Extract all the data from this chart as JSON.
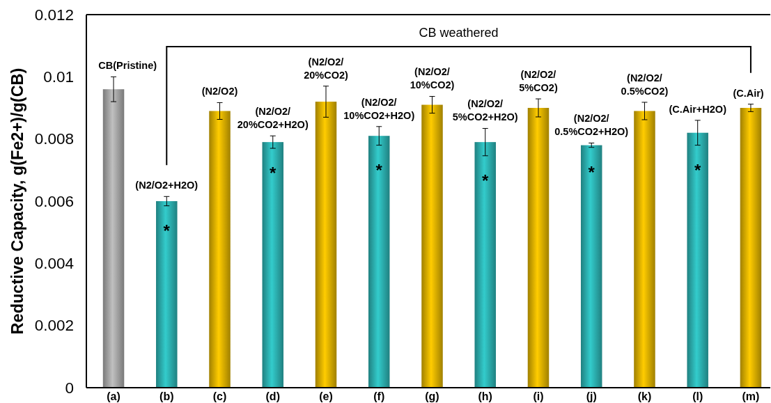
{
  "chart_data": {
    "type": "bar",
    "ylabel": "Reductive Capacity, g(Fe2+)/g(CB)",
    "categories": [
      "(a)",
      "(b)",
      "(c)",
      "(d)",
      "(e)",
      "(f)",
      "(g)",
      "(h)",
      "(i)",
      "(j)",
      "(k)",
      "(l)",
      "(m)"
    ],
    "values": [
      0.0096,
      0.006,
      0.0089,
      0.0079,
      0.0092,
      0.0081,
      0.0091,
      0.0079,
      0.009,
      0.0078,
      0.0089,
      0.0082,
      0.009
    ],
    "colors": [
      "#c0c0c0",
      "#33cccc",
      "#ffcc00",
      "#33cccc",
      "#ffcc00",
      "#33cccc",
      "#ffcc00",
      "#33cccc",
      "#ffcc00",
      "#33cccc",
      "#ffcc00",
      "#33cccc",
      "#ffcc00"
    ],
    "errors": [
      0.0004,
      0.00015,
      0.00027,
      0.0002,
      0.0005,
      0.0003,
      0.00027,
      0.00044,
      0.00029,
      7e-05,
      0.00028,
      0.0004,
      0.00012
    ],
    "ylim": [
      0,
      0.012
    ],
    "yticks": [
      0,
      0.002,
      0.004,
      0.006,
      0.008,
      0.01,
      0.012
    ],
    "annotations": [
      "CB weathered",
      {
        "text": "CB(Pristine)",
        "x": "(a)",
        "y": 0.0096
      },
      {
        "text": "(N2/O2+H2O)",
        "x": "(b)",
        "y": 0.006
      },
      {
        "text": "*",
        "x": "(b)",
        "y": 0.006
      },
      {
        "text": "(N2/O2)",
        "x": "(c)",
        "y": 0.0089
      },
      {
        "text": "(N2/O2/\n20%CO2+H2O)",
        "x": "(d)",
        "y": 0.0079
      },
      {
        "text": "*",
        "x": "(d)",
        "y": 0.0079
      },
      {
        "text": "(N2/O2/\n20%CO2)",
        "x": "(e)",
        "y": 0.0092
      },
      {
        "text": "(N2/O2/\n10%CO2+H2O)",
        "x": "(f)",
        "y": 0.0081
      },
      {
        "text": "*",
        "x": "(f)",
        "y": 0.0081
      },
      {
        "text": "(N2/O2/\n10%CO2)",
        "x": "(g)",
        "y": 0.0091
      },
      {
        "text": "(N2/O2/\n5%CO2+H2O)",
        "x": "(h)",
        "y": 0.0079
      },
      {
        "text": "*",
        "x": "(h)",
        "y": 0.0079
      },
      {
        "text": "(N2/O2/\n5%CO2)",
        "x": "(i)",
        "y": 0.009
      },
      {
        "text": "(N2/O2/\n0.5%CO2+H2O)",
        "x": "(j)",
        "y": 0.0078
      },
      {
        "text": "*",
        "x": "(j)",
        "y": 0.0078
      },
      {
        "text": "(N2/O2/\n0.5%CO2)",
        "x": "(k)",
        "y": 0.0089
      },
      {
        "text": "(C.Air+H2O)",
        "x": "(l)",
        "y": 0.0082
      },
      {
        "text": "*",
        "x": "(l)",
        "y": 0.0082
      },
      {
        "text": "(C.Air)",
        "x": "(m)",
        "y": 0.009
      }
    ]
  }
}
